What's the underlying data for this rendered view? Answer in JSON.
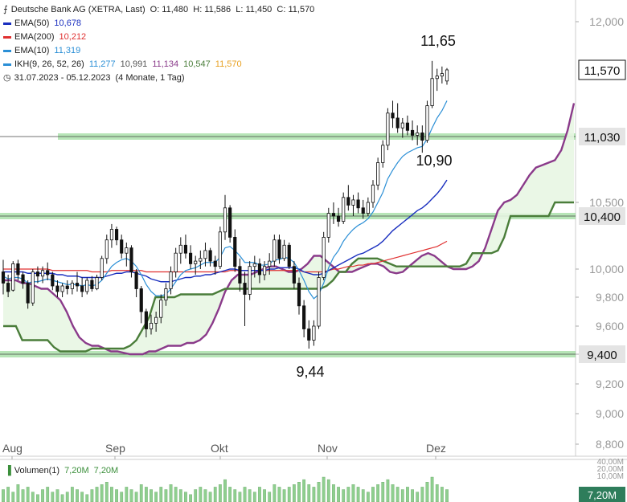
{
  "header": {
    "title": "Deutsche Bank AG (XETRA, Last)",
    "ohlc": "O: 11,480  H: 11,586  L: 11,450  C: 11,570",
    "range": "31.07.2023 - 05.12.2023",
    "range_note": "(4 Monate, 1 Tag)"
  },
  "indicators": [
    {
      "label": "EMA(50)",
      "value": "10,678",
      "color": "#1a2fbf"
    },
    {
      "label": "EMA(200)",
      "value": "10,212",
      "color": "#e03030"
    },
    {
      "label": "EMA(10)",
      "value": "11,319",
      "color": "#2b8fd6"
    },
    {
      "label": "IKH(9, 26, 52, 26)",
      "value": "11,277",
      "color": "#2b8fd6",
      "extra": [
        {
          "value": "10,991",
          "color": "#555555"
        },
        {
          "value": "11,134",
          "color": "#8a3a8a"
        },
        {
          "value": "10,547",
          "color": "#4a7d3a"
        },
        {
          "value": "11,570",
          "color": "#e8a020"
        }
      ]
    }
  ],
  "volume": {
    "label": "Volumen(1)",
    "v1": "7,20M",
    "v2": "7,20M",
    "axis": [
      "40,00M",
      "20,00M",
      "10,00M"
    ],
    "current": "7,20M"
  },
  "colors": {
    "up": "#3b8f3b",
    "down": "#111111",
    "grid": "#e8e8e8",
    "support": "#9fdc9f",
    "cloud": "#e8f6e3"
  },
  "chart_data": {
    "type": "candlestick",
    "y_ticks": [
      8.8,
      9.0,
      9.2,
      9.4,
      9.6,
      9.8,
      10.0,
      10.5,
      12.0
    ],
    "y_tick_labels": [
      "8,800",
      "9,000",
      "9,200",
      "9,400",
      "9,600",
      "9,800",
      "10,000",
      "10,500",
      "12,000"
    ],
    "x_labels": [
      "Aug",
      "Sep",
      "Okt",
      "Nov",
      "Dez"
    ],
    "support_levels": [
      {
        "value": 11.03,
        "label": "11,030"
      },
      {
        "value": 10.4,
        "label": "10,400"
      },
      {
        "value": 9.4,
        "label": "9,400"
      }
    ],
    "current_price": {
      "value": 11.57,
      "label": "11,570"
    },
    "annotations": [
      "11,65",
      "10,90",
      "9,44"
    ],
    "candles": [
      [
        9.98,
        10.07,
        9.82,
        9.9
      ],
      [
        9.9,
        9.96,
        9.8,
        9.84
      ],
      [
        9.85,
        10.06,
        9.84,
        10.04
      ],
      [
        10.04,
        10.07,
        9.92,
        9.96
      ],
      [
        9.96,
        9.98,
        9.86,
        9.9
      ],
      [
        9.9,
        9.92,
        9.72,
        9.76
      ],
      [
        9.76,
        10.0,
        9.74,
        9.98
      ],
      [
        9.98,
        10.02,
        9.9,
        9.95
      ],
      [
        9.95,
        10.02,
        9.9,
        9.99
      ],
      [
        9.99,
        10.05,
        9.92,
        9.96
      ],
      [
        9.96,
        9.98,
        9.85,
        9.88
      ],
      [
        9.88,
        9.92,
        9.8,
        9.84
      ],
      [
        9.84,
        9.9,
        9.8,
        9.88
      ],
      [
        9.88,
        9.92,
        9.82,
        9.86
      ],
      [
        9.86,
        9.92,
        9.82,
        9.9
      ],
      [
        9.9,
        9.98,
        9.84,
        9.88
      ],
      [
        9.88,
        9.94,
        9.8,
        9.84
      ],
      [
        9.84,
        9.94,
        9.82,
        9.92
      ],
      [
        9.92,
        9.95,
        9.84,
        9.86
      ],
      [
        9.86,
        9.96,
        9.85,
        9.94
      ],
      [
        9.94,
        10.1,
        9.92,
        10.08
      ],
      [
        10.08,
        10.26,
        10.04,
        10.22
      ],
      [
        10.22,
        10.34,
        10.16,
        10.3
      ],
      [
        10.3,
        10.32,
        10.18,
        10.22
      ],
      [
        10.22,
        10.26,
        10.08,
        10.12
      ],
      [
        10.12,
        10.2,
        10.02,
        10.16
      ],
      [
        10.16,
        10.18,
        9.94,
        9.98
      ],
      [
        9.98,
        10.0,
        9.8,
        9.86
      ],
      [
        9.86,
        9.88,
        9.62,
        9.7
      ],
      [
        9.7,
        9.72,
        9.52,
        9.58
      ],
      [
        9.58,
        9.68,
        9.54,
        9.62
      ],
      [
        9.62,
        9.7,
        9.56,
        9.66
      ],
      [
        9.66,
        9.82,
        9.62,
        9.78
      ],
      [
        9.78,
        9.9,
        9.74,
        9.86
      ],
      [
        9.86,
        10.02,
        9.82,
        9.98
      ],
      [
        9.98,
        10.16,
        9.94,
        10.12
      ],
      [
        10.12,
        10.24,
        10.04,
        10.18
      ],
      [
        10.18,
        10.26,
        10.08,
        10.12
      ],
      [
        10.12,
        10.18,
        10.0,
        10.04
      ],
      [
        10.04,
        10.1,
        9.96,
        10.06
      ],
      [
        10.06,
        10.14,
        10.0,
        10.08
      ],
      [
        10.08,
        10.2,
        10.02,
        10.14
      ],
      [
        10.14,
        10.16,
        10.02,
        10.06
      ],
      [
        10.06,
        10.1,
        9.96,
        10.02
      ],
      [
        10.02,
        10.32,
        10.0,
        10.28
      ],
      [
        10.28,
        10.56,
        10.22,
        10.46
      ],
      [
        10.46,
        10.48,
        10.2,
        10.24
      ],
      [
        10.24,
        10.3,
        9.98,
        10.02
      ],
      [
        10.02,
        10.08,
        9.84,
        9.9
      ],
      [
        9.9,
        9.98,
        9.6,
        9.82
      ],
      [
        9.82,
        10.06,
        9.78,
        10.02
      ],
      [
        10.02,
        10.1,
        9.94,
        10.04
      ],
      [
        10.04,
        10.08,
        9.9,
        9.96
      ],
      [
        9.96,
        10.06,
        9.92,
        10.02
      ],
      [
        10.02,
        10.12,
        9.96,
        10.06
      ],
      [
        10.06,
        10.26,
        10.02,
        10.22
      ],
      [
        10.22,
        10.26,
        10.04,
        10.08
      ],
      [
        10.08,
        10.22,
        10.06,
        10.18
      ],
      [
        10.18,
        10.2,
        10.0,
        10.02
      ],
      [
        10.02,
        10.06,
        9.86,
        9.9
      ],
      [
        9.9,
        9.94,
        9.68,
        9.74
      ],
      [
        9.74,
        9.78,
        9.52,
        9.58
      ],
      [
        9.58,
        9.64,
        9.44,
        9.5
      ],
      [
        9.5,
        9.64,
        9.46,
        9.6
      ],
      [
        9.6,
        9.98,
        9.58,
        9.94
      ],
      [
        9.94,
        10.28,
        9.92,
        10.24
      ],
      [
        10.24,
        10.46,
        10.2,
        10.42
      ],
      [
        10.42,
        10.5,
        10.34,
        10.4
      ],
      [
        10.4,
        10.46,
        10.32,
        10.36
      ],
      [
        10.36,
        10.58,
        10.34,
        10.54
      ],
      [
        10.54,
        10.64,
        10.44,
        10.48
      ],
      [
        10.48,
        10.56,
        10.4,
        10.52
      ],
      [
        10.52,
        10.58,
        10.42,
        10.46
      ],
      [
        10.46,
        10.52,
        10.38,
        10.42
      ],
      [
        10.42,
        10.54,
        10.4,
        10.5
      ],
      [
        10.5,
        10.68,
        10.46,
        10.64
      ],
      [
        10.64,
        10.86,
        10.6,
        10.82
      ],
      [
        10.82,
        11.0,
        10.78,
        10.96
      ],
      [
        10.96,
        11.26,
        10.92,
        11.22
      ],
      [
        11.22,
        11.32,
        11.1,
        11.18
      ],
      [
        11.18,
        11.3,
        11.06,
        11.1
      ],
      [
        11.1,
        11.18,
        11.02,
        11.14
      ],
      [
        11.14,
        11.2,
        11.04,
        11.08
      ],
      [
        11.08,
        11.16,
        11.0,
        11.04
      ],
      [
        11.04,
        11.12,
        10.96,
        11.06
      ],
      [
        11.06,
        11.12,
        10.9,
        11.0
      ],
      [
        11.0,
        11.32,
        10.98,
        11.28
      ],
      [
        11.28,
        11.65,
        11.26,
        11.5
      ],
      [
        11.5,
        11.58,
        11.4,
        11.52
      ],
      [
        11.52,
        11.6,
        11.46,
        11.54
      ],
      [
        11.48,
        11.586,
        11.45,
        11.57
      ]
    ],
    "volumes": [
      5,
      6,
      4,
      7,
      5,
      6,
      4,
      3,
      5,
      6,
      4,
      5,
      3,
      4,
      6,
      5,
      4,
      3,
      5,
      6,
      7,
      8,
      6,
      5,
      4,
      6,
      5,
      4,
      7,
      6,
      5,
      4,
      6,
      5,
      7,
      6,
      5,
      4,
      3,
      5,
      6,
      5,
      4,
      6,
      7,
      9,
      6,
      5,
      4,
      6,
      5,
      4,
      6,
      5,
      4,
      7,
      6,
      5,
      6,
      7,
      8,
      9,
      7,
      6,
      8,
      10,
      9,
      7,
      6,
      5,
      6,
      7,
      6,
      5,
      4,
      6,
      7,
      8,
      9,
      7,
      6,
      5,
      6,
      5,
      4,
      6,
      8,
      10,
      7,
      6,
      5
    ],
    "ema10": [
      9.95,
      9.93,
      9.94,
      9.94,
      9.93,
      9.9,
      9.91,
      9.91,
      9.92,
      9.93,
      9.92,
      9.91,
      9.9,
      9.89,
      9.89,
      9.89,
      9.88,
      9.89,
      9.88,
      9.89,
      9.92,
      9.97,
      10.02,
      10.05,
      10.07,
      10.08,
      10.06,
      10.02,
      9.96,
      9.89,
      9.84,
      9.81,
      9.81,
      9.82,
      9.86,
      9.91,
      9.96,
      9.99,
      10.0,
      10.01,
      10.03,
      10.05,
      10.05,
      10.05,
      10.09,
      10.16,
      10.17,
      10.14,
      10.1,
      10.05,
      10.05,
      10.05,
      10.03,
      10.03,
      10.04,
      10.07,
      10.07,
      10.09,
      10.08,
      10.05,
      9.99,
      9.92,
      9.84,
      9.79,
      9.82,
      9.9,
      10.01,
      10.09,
      10.14,
      10.21,
      10.26,
      10.3,
      10.33,
      10.35,
      10.38,
      10.43,
      10.5,
      10.58,
      10.69,
      10.76,
      10.82,
      10.87,
      10.9,
      10.92,
      10.94,
      10.95,
      11.01,
      11.1,
      11.18,
      11.24,
      11.32
    ],
    "ema50": [
      9.98,
      9.98,
      9.98,
      9.98,
      9.98,
      9.97,
      9.97,
      9.97,
      9.97,
      9.97,
      9.97,
      9.96,
      9.96,
      9.95,
      9.95,
      9.95,
      9.94,
      9.94,
      9.94,
      9.94,
      9.94,
      9.95,
      9.96,
      9.97,
      9.97,
      9.98,
      9.98,
      9.97,
      9.96,
      9.95,
      9.93,
      9.92,
      9.91,
      9.91,
      9.91,
      9.92,
      9.93,
      9.94,
      9.94,
      9.95,
      9.95,
      9.96,
      9.96,
      9.97,
      9.98,
      9.99,
      10.0,
      10.0,
      9.99,
      9.99,
      9.99,
      9.99,
      9.99,
      9.99,
      10.0,
      10.0,
      10.01,
      10.01,
      10.01,
      10.01,
      10.0,
      9.98,
      9.97,
      9.96,
      9.96,
      9.97,
      9.99,
      10.01,
      10.03,
      10.05,
      10.07,
      10.09,
      10.11,
      10.12,
      10.14,
      10.16,
      10.18,
      10.21,
      10.25,
      10.29,
      10.32,
      10.35,
      10.38,
      10.41,
      10.44,
      10.46,
      10.49,
      10.53,
      10.57,
      10.62,
      10.68
    ],
    "ema200": [
      10.0,
      10.0,
      10.0,
      10.0,
      10.0,
      10.0,
      10.0,
      10.0,
      10.0,
      10.0,
      9.99,
      9.99,
      9.99,
      9.99,
      9.99,
      9.99,
      9.99,
      9.99,
      9.98,
      9.98,
      9.98,
      9.98,
      9.99,
      9.99,
      9.99,
      9.99,
      9.99,
      9.99,
      9.99,
      9.98,
      9.98,
      9.98,
      9.98,
      9.98,
      9.98,
      9.98,
      9.98,
      9.98,
      9.98,
      9.98,
      9.98,
      9.98,
      9.98,
      9.98,
      9.98,
      9.98,
      9.99,
      9.99,
      9.99,
      9.99,
      9.99,
      9.99,
      9.99,
      9.99,
      9.99,
      9.99,
      9.99,
      9.99,
      9.99,
      9.99,
      9.99,
      9.98,
      9.98,
      9.98,
      9.98,
      9.98,
      9.99,
      10.0,
      10.0,
      10.01,
      10.02,
      10.02,
      10.03,
      10.03,
      10.04,
      10.04,
      10.05,
      10.06,
      10.07,
      10.08,
      10.09,
      10.1,
      10.11,
      10.12,
      10.13,
      10.14,
      10.15,
      10.16,
      10.17,
      10.19,
      10.21
    ],
    "span_a": [
      9.92,
      9.92,
      9.92,
      9.9,
      9.9,
      9.88,
      9.86,
      9.86,
      9.82,
      9.78,
      9.7,
      9.6,
      9.52,
      9.48,
      9.46,
      9.46,
      9.44,
      9.42,
      9.42,
      9.41,
      9.4,
      9.4,
      9.4,
      9.42,
      9.42,
      9.44,
      9.46,
      9.46,
      9.46,
      9.48,
      9.48,
      9.5,
      9.54,
      9.62,
      9.72,
      9.84,
      9.92,
      9.96,
      9.96,
      9.96,
      9.98,
      10.0,
      10.02,
      10.02,
      10.0,
      9.98,
      9.98,
      10.0,
      10.04,
      10.1,
      10.1,
      10.06,
      10.02,
      9.98,
      9.98,
      9.98,
      10.0,
      10.02,
      10.04,
      10.04,
      10.02,
      9.98,
      9.97,
      9.98,
      10.02,
      10.06,
      10.1,
      10.12,
      10.1,
      10.06,
      10.02,
      10.0,
      10.0,
      10.0,
      10.02,
      10.06,
      10.16,
      10.3,
      10.44,
      10.5,
      10.52,
      10.56,
      10.64,
      10.72,
      10.78,
      10.8,
      10.82,
      10.84,
      10.92,
      11.08,
      11.3
    ],
    "span_b": [
      9.6,
      9.6,
      9.6,
      9.5,
      9.5,
      9.5,
      9.5,
      9.5,
      9.45,
      9.42,
      9.42,
      9.42,
      9.42,
      9.42,
      9.44,
      9.44,
      9.44,
      9.44,
      9.44,
      9.44,
      9.46,
      9.5,
      9.58,
      9.66,
      9.8,
      9.8,
      9.8,
      9.8,
      9.82,
      9.82,
      9.82,
      9.82,
      9.82,
      9.82,
      9.84,
      9.86,
      9.86,
      9.86,
      9.86,
      9.86,
      9.86,
      9.86,
      9.86,
      9.86,
      9.86,
      9.86,
      9.86,
      9.86,
      9.86,
      9.86,
      9.86,
      9.88,
      9.92,
      9.98,
      9.98,
      10.04,
      10.08,
      10.08,
      10.08,
      10.08,
      10.06,
      10.04,
      10.02,
      10.02,
      10.02,
      10.02,
      10.02,
      10.02,
      10.02,
      10.02,
      10.02,
      10.02,
      10.02,
      10.04,
      10.12,
      10.12,
      10.12,
      10.12,
      10.14,
      10.24,
      10.4,
      10.4,
      10.4,
      10.4,
      10.4,
      10.4,
      10.4,
      10.5,
      10.5,
      10.5,
      10.5
    ]
  }
}
